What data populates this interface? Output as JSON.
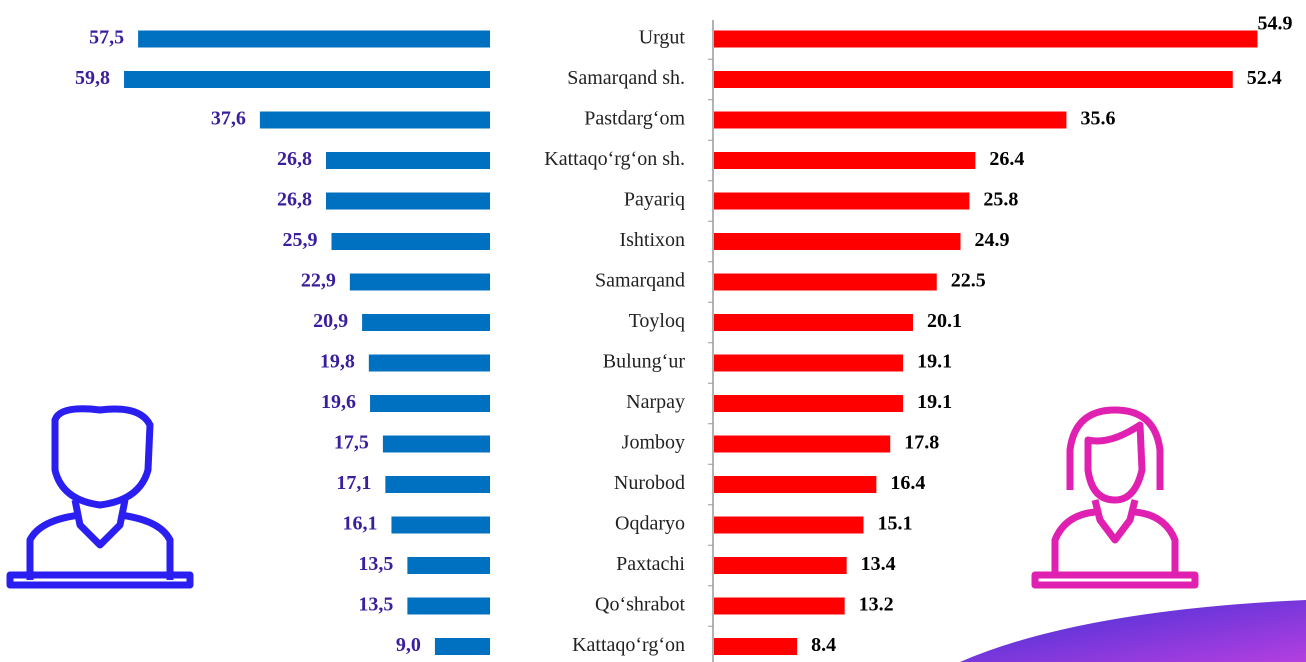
{
  "chart_data": {
    "type": "butterfly-bar",
    "categories": [
      "Urgut",
      "Samarqand sh.",
      "Pastdarg‘om",
      "Kattaqo‘rg‘on sh.",
      "Payariq",
      "Ishtixon",
      "Samarqand",
      "Toyloq",
      "Bulung‘ur",
      "Narpay",
      "Jomboy",
      "Nurobod",
      "Oqdaryo",
      "Paxtachi",
      "Qo‘shrabot",
      "Kattaqo‘rg‘on"
    ],
    "series": [
      {
        "color": "#0070c0",
        "side": "left",
        "values": [
          57.5,
          59.8,
          37.6,
          26.8,
          26.8,
          25.9,
          22.9,
          20.9,
          19.8,
          19.6,
          17.5,
          17.1,
          16.1,
          13.5,
          13.5,
          9.0
        ],
        "value_labels": [
          "57,5",
          "59,8",
          "37,6",
          "26,8",
          "26,8",
          "25,9",
          "22,9",
          "20,9",
          "19,8",
          "19,6",
          "17,5",
          "17,1",
          "16,1",
          "13,5",
          "13,5",
          "9,0"
        ]
      },
      {
        "color": "#ff0000",
        "side": "right",
        "values": [
          54.9,
          52.4,
          35.6,
          26.4,
          25.8,
          24.9,
          22.5,
          20.1,
          19.1,
          19.1,
          17.8,
          16.4,
          15.1,
          13.4,
          13.2,
          8.4
        ]
      }
    ]
  }
}
